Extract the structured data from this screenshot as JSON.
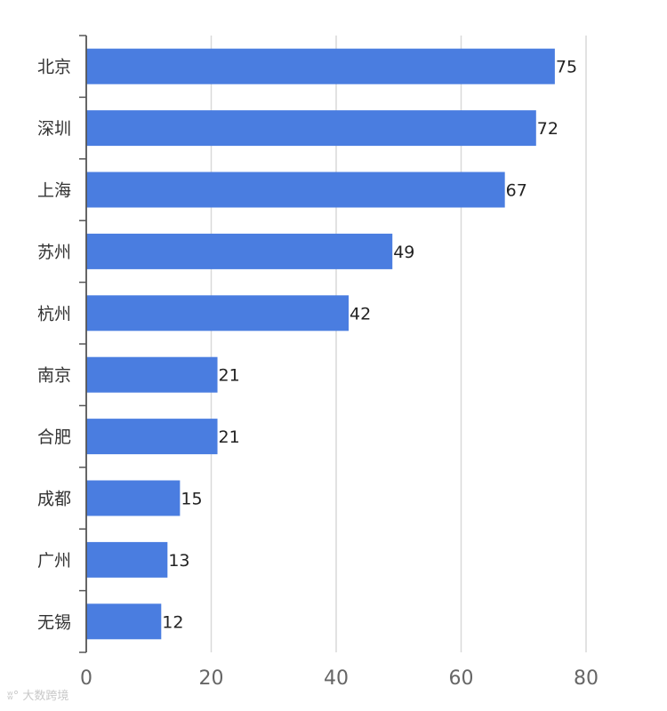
{
  "chart_data": {
    "type": "bar",
    "orientation": "horizontal",
    "categories": [
      "北京",
      "深圳",
      "上海",
      "苏州",
      "杭州",
      "南京",
      "合肥",
      "成都",
      "广州",
      "无锡"
    ],
    "values": [
      75,
      72,
      67,
      49,
      42,
      21,
      21,
      15,
      13,
      12
    ],
    "xlim": [
      0,
      80
    ],
    "xticks": [
      0,
      20,
      40,
      60,
      80
    ],
    "grid": true,
    "bar_color": "#4a7de0",
    "data_labels": true
  },
  "watermark": {
    "text": "大数跨境"
  }
}
